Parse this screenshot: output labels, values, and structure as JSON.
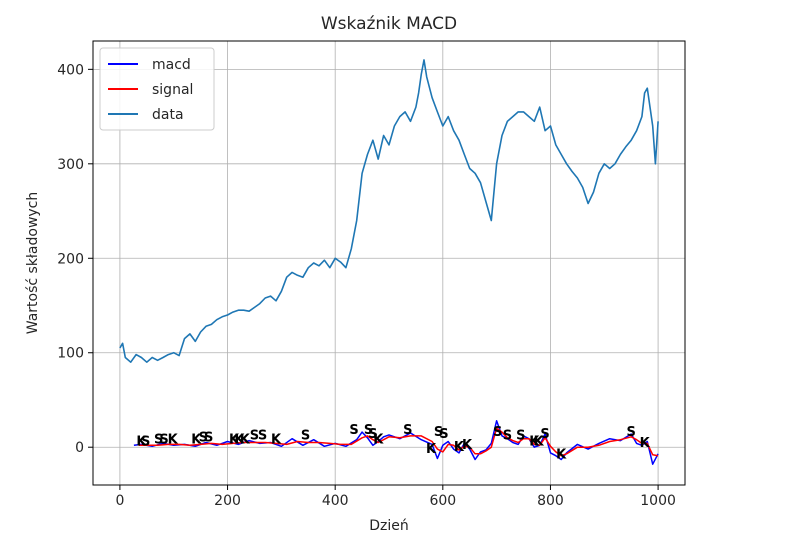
{
  "chart_data": {
    "type": "line",
    "title": "Wskaźnik MACD",
    "xlabel": "Dzień",
    "ylabel": "Wartość składowych",
    "xlim": [
      -50,
      1050
    ],
    "ylim": [
      -40,
      430
    ],
    "xticks": [
      0,
      200,
      400,
      600,
      800,
      1000
    ],
    "yticks": [
      0,
      100,
      200,
      300,
      400
    ],
    "grid": true,
    "legend_position": "top-left",
    "colors": {
      "macd": "#0000ff",
      "signal": "#ff0000",
      "data": "#1f77b4"
    },
    "series": [
      {
        "name": "macd",
        "x": [
          26,
          40,
          60,
          80,
          100,
          120,
          140,
          160,
          180,
          200,
          220,
          240,
          260,
          280,
          300,
          320,
          340,
          360,
          380,
          400,
          420,
          440,
          450,
          460,
          470,
          480,
          490,
          500,
          520,
          540,
          560,
          580,
          590,
          600,
          610,
          620,
          630,
          640,
          650,
          660,
          670,
          680,
          690,
          700,
          710,
          720,
          730,
          740,
          750,
          760,
          770,
          780,
          790,
          800,
          810,
          820,
          830,
          850,
          870,
          890,
          910,
          930,
          950,
          960,
          970,
          980,
          990,
          1000
        ],
        "y": [
          2,
          3,
          1,
          4,
          2,
          3,
          1,
          5,
          2,
          6,
          3,
          7,
          4,
          5,
          1,
          9,
          2,
          8,
          1,
          4,
          1,
          8,
          16,
          10,
          2,
          6,
          11,
          13,
          9,
          15,
          8,
          3,
          -12,
          2,
          6,
          -2,
          -6,
          4,
          -2,
          -13,
          -5,
          -3,
          4,
          28,
          12,
          9,
          5,
          3,
          12,
          9,
          0,
          2,
          14,
          -6,
          -9,
          -13,
          -6,
          3,
          -2,
          4,
          9,
          7,
          14,
          4,
          2,
          6,
          -18,
          -7
        ]
      },
      {
        "name": "signal",
        "x": [
          35,
          50,
          70,
          90,
          110,
          130,
          150,
          170,
          190,
          210,
          230,
          250,
          270,
          290,
          310,
          330,
          350,
          370,
          390,
          410,
          430,
          450,
          460,
          470,
          480,
          490,
          500,
          520,
          540,
          560,
          580,
          590,
          600,
          610,
          620,
          630,
          640,
          650,
          660,
          670,
          680,
          690,
          700,
          710,
          720,
          730,
          740,
          750,
          760,
          770,
          780,
          790,
          800,
          810,
          820,
          830,
          850,
          870,
          890,
          910,
          930,
          950,
          960,
          970,
          980,
          990,
          1000
        ],
        "y": [
          2,
          2,
          2,
          3,
          3,
          2,
          3,
          4,
          3,
          4,
          5,
          5,
          5,
          4,
          3,
          6,
          5,
          5,
          4,
          3,
          3,
          10,
          12,
          8,
          5,
          8,
          11,
          10,
          12,
          12,
          6,
          -2,
          -5,
          3,
          2,
          -3,
          1,
          0,
          -7,
          -7,
          -4,
          0,
          20,
          16,
          10,
          7,
          5,
          9,
          9,
          3,
          2,
          10,
          1,
          -5,
          -9,
          -7,
          0,
          0,
          2,
          6,
          8,
          11,
          8,
          4,
          4,
          -8,
          -9
        ]
      },
      {
        "name": "data",
        "x": [
          0,
          5,
          10,
          20,
          30,
          40,
          50,
          60,
          70,
          80,
          90,
          100,
          110,
          120,
          130,
          140,
          150,
          160,
          170,
          180,
          190,
          200,
          210,
          220,
          230,
          240,
          250,
          260,
          270,
          280,
          290,
          300,
          310,
          320,
          330,
          340,
          350,
          360,
          370,
          380,
          390,
          400,
          410,
          420,
          430,
          440,
          450,
          460,
          470,
          480,
          490,
          500,
          510,
          520,
          530,
          540,
          550,
          555,
          560,
          565,
          570,
          580,
          590,
          600,
          610,
          620,
          630,
          640,
          650,
          660,
          670,
          680,
          690,
          700,
          710,
          720,
          730,
          740,
          750,
          760,
          770,
          780,
          790,
          800,
          810,
          820,
          830,
          840,
          850,
          860,
          870,
          880,
          890,
          900,
          910,
          920,
          930,
          940,
          950,
          960,
          970,
          975,
          980,
          985,
          990,
          995,
          1000
        ],
        "y": [
          105,
          110,
          95,
          90,
          98,
          95,
          90,
          95,
          92,
          95,
          98,
          100,
          97,
          115,
          120,
          112,
          122,
          128,
          130,
          135,
          138,
          140,
          143,
          145,
          145,
          144,
          148,
          152,
          158,
          160,
          155,
          165,
          180,
          185,
          182,
          180,
          190,
          195,
          192,
          198,
          190,
          200,
          196,
          190,
          210,
          240,
          290,
          310,
          325,
          305,
          330,
          320,
          340,
          350,
          355,
          345,
          360,
          375,
          395,
          410,
          392,
          370,
          355,
          340,
          350,
          335,
          325,
          310,
          295,
          290,
          280,
          260,
          240,
          300,
          330,
          345,
          350,
          355,
          355,
          350,
          345,
          360,
          335,
          340,
          320,
          310,
          300,
          292,
          285,
          275,
          258,
          270,
          290,
          300,
          295,
          300,
          310,
          318,
          325,
          335,
          350,
          375,
          380,
          360,
          340,
          300,
          345
        ]
      }
    ],
    "annotations": [
      {
        "text": "K",
        "x": 40,
        "y": 2
      },
      {
        "text": "S",
        "x": 48,
        "y": 2
      },
      {
        "text": "S",
        "x": 72,
        "y": 4
      },
      {
        "text": "S",
        "x": 82,
        "y": 4
      },
      {
        "text": "K",
        "x": 98,
        "y": 4
      },
      {
        "text": "K",
        "x": 142,
        "y": 4
      },
      {
        "text": "S",
        "x": 155,
        "y": 6
      },
      {
        "text": "S",
        "x": 165,
        "y": 6
      },
      {
        "text": "K",
        "x": 212,
        "y": 4
      },
      {
        "text": "K",
        "x": 222,
        "y": 4
      },
      {
        "text": "K",
        "x": 232,
        "y": 4
      },
      {
        "text": "S",
        "x": 250,
        "y": 8
      },
      {
        "text": "S",
        "x": 265,
        "y": 8
      },
      {
        "text": "K",
        "x": 290,
        "y": 4
      },
      {
        "text": "S",
        "x": 345,
        "y": 8
      },
      {
        "text": "S",
        "x": 435,
        "y": 14
      },
      {
        "text": "S",
        "x": 462,
        "y": 14
      },
      {
        "text": "S",
        "x": 470,
        "y": 10
      },
      {
        "text": "K",
        "x": 480,
        "y": 4
      },
      {
        "text": "S",
        "x": 535,
        "y": 14
      },
      {
        "text": "K",
        "x": 578,
        "y": -6
      },
      {
        "text": "S",
        "x": 592,
        "y": 12
      },
      {
        "text": "S",
        "x": 602,
        "y": 10
      },
      {
        "text": "K",
        "x": 630,
        "y": -4
      },
      {
        "text": "K",
        "x": 645,
        "y": -2
      },
      {
        "text": "S",
        "x": 702,
        "y": 12
      },
      {
        "text": "S",
        "x": 720,
        "y": 8
      },
      {
        "text": "S",
        "x": 745,
        "y": 8
      },
      {
        "text": "K",
        "x": 770,
        "y": 2
      },
      {
        "text": "K",
        "x": 778,
        "y": 2
      },
      {
        "text": "S",
        "x": 790,
        "y": 10
      },
      {
        "text": "K",
        "x": 820,
        "y": -12
      },
      {
        "text": "S",
        "x": 950,
        "y": 12
      },
      {
        "text": "K",
        "x": 975,
        "y": 0
      }
    ]
  }
}
